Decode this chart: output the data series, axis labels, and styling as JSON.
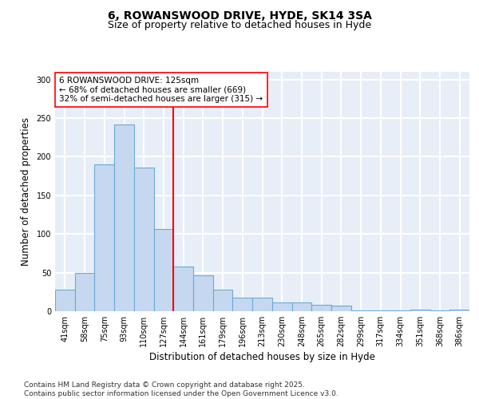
{
  "title": "6, ROWANSWOOD DRIVE, HYDE, SK14 3SA",
  "subtitle": "Size of property relative to detached houses in Hyde",
  "xlabel": "Distribution of detached houses by size in Hyde",
  "ylabel": "Number of detached properties",
  "categories": [
    "41sqm",
    "58sqm",
    "75sqm",
    "93sqm",
    "110sqm",
    "127sqm",
    "144sqm",
    "161sqm",
    "179sqm",
    "196sqm",
    "213sqm",
    "230sqm",
    "248sqm",
    "265sqm",
    "282sqm",
    "299sqm",
    "317sqm",
    "334sqm",
    "351sqm",
    "368sqm",
    "386sqm"
  ],
  "values": [
    28,
    50,
    190,
    242,
    186,
    106,
    58,
    46,
    28,
    18,
    18,
    11,
    11,
    8,
    7,
    1,
    1,
    1,
    2,
    1,
    2
  ],
  "bar_color": "#c5d8f0",
  "bar_edge_color": "#6aaad4",
  "property_line_x": 5.5,
  "property_line_color": "red",
  "annotation_text": "6 ROWANSWOOD DRIVE: 125sqm\n← 68% of detached houses are smaller (669)\n32% of semi-detached houses are larger (315) →",
  "annotation_box_color": "white",
  "annotation_box_edge_color": "red",
  "ylim": [
    0,
    310
  ],
  "yticks": [
    0,
    50,
    100,
    150,
    200,
    250,
    300
  ],
  "footnote": "Contains HM Land Registry data © Crown copyright and database right 2025.\nContains public sector information licensed under the Open Government Licence v3.0.",
  "background_color": "#e8eef8",
  "grid_color": "white",
  "title_fontsize": 10,
  "subtitle_fontsize": 9,
  "axis_label_fontsize": 8.5,
  "tick_fontsize": 7,
  "annotation_fontsize": 7.5,
  "footnote_fontsize": 6.5
}
